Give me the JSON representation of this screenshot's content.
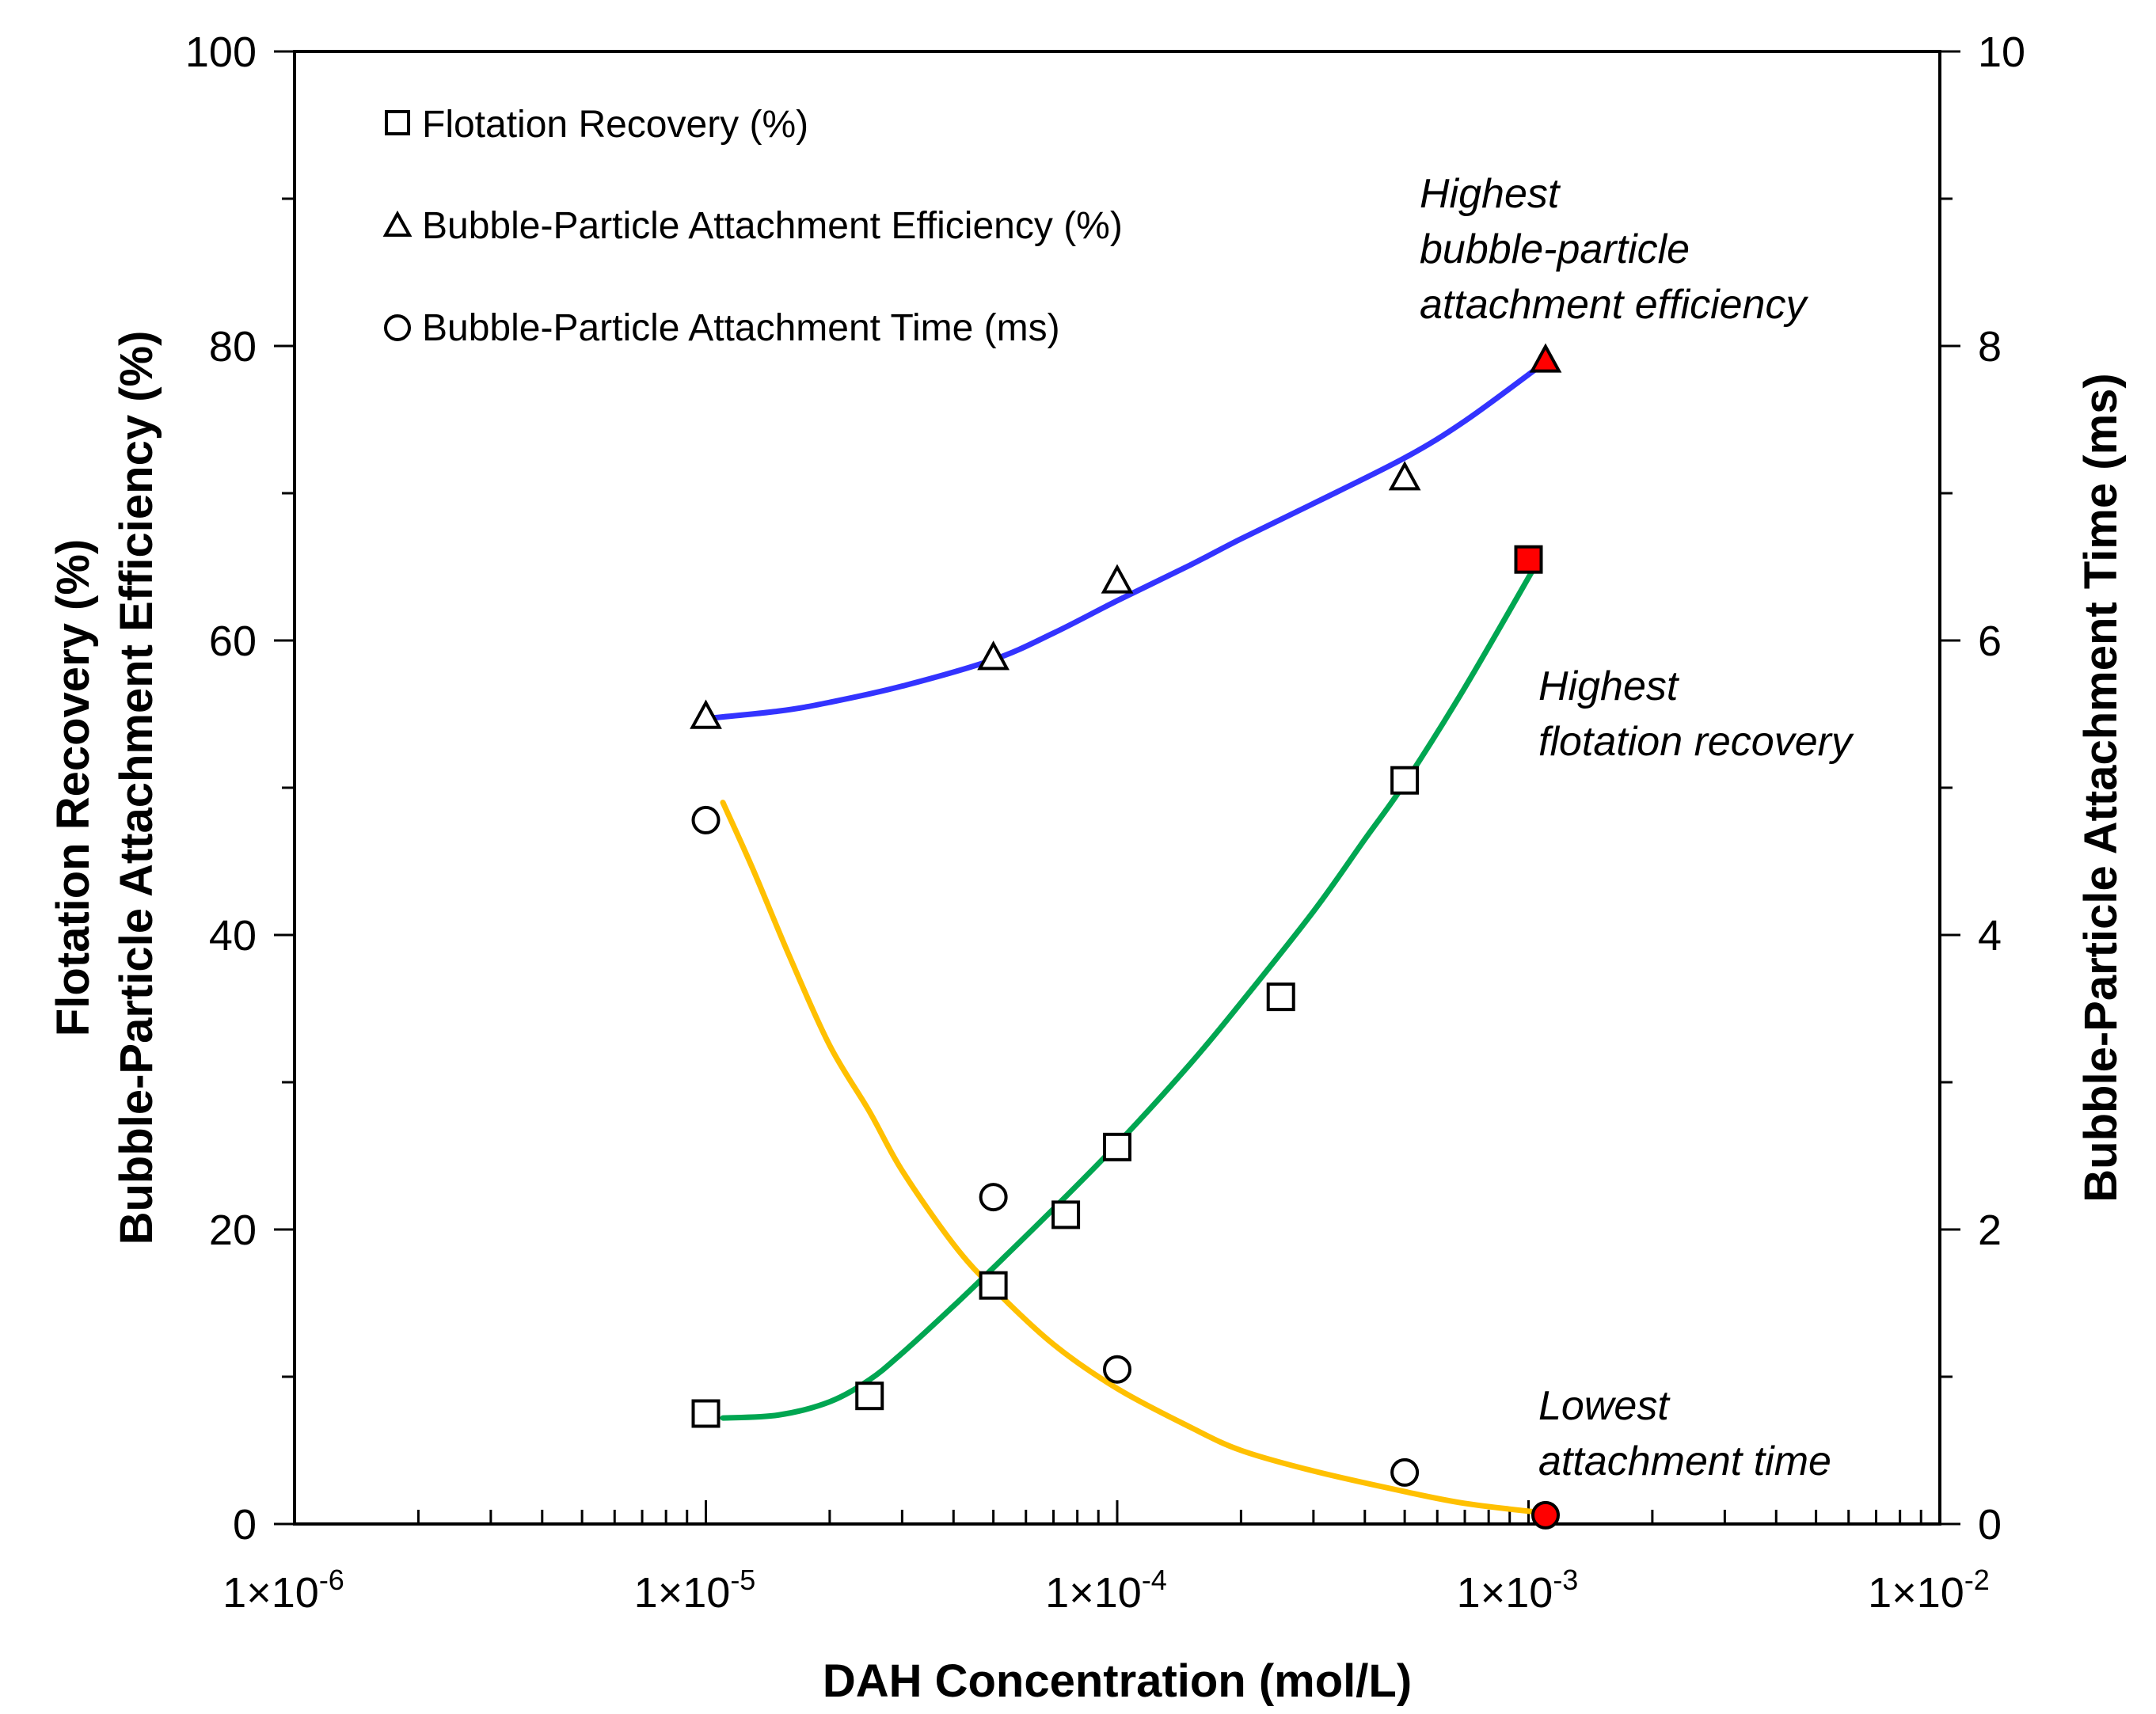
{
  "chart_data": {
    "type": "scatter",
    "xlabel": "DAH Concentration (mol/L)",
    "ylabel_line1": "Flotation Recovery (%)",
    "ylabel_line2": "Bubble-Particle Attachment Efficiency (%)",
    "y2label": "Bubble-Particle Attachment Time (ms)",
    "x_scale": "log",
    "xlim": [
      1e-06,
      0.01
    ],
    "ylim": [
      0,
      100
    ],
    "y2lim": [
      0,
      10
    ],
    "x_ticks": [
      1e-06,
      1e-05,
      0.0001,
      0.001,
      0.01
    ],
    "x_tick_labels": [
      {
        "base": "1×10",
        "exp": "-6"
      },
      {
        "base": "1×10",
        "exp": "-5"
      },
      {
        "base": "1×10",
        "exp": "-4"
      },
      {
        "base": "1×10",
        "exp": "-3"
      },
      {
        "base": "1×10",
        "exp": "-2"
      }
    ],
    "y_tick_labels": [
      "0",
      "20",
      "40",
      "60",
      "80",
      "100"
    ],
    "y2_tick_labels": [
      "0",
      "2",
      "4",
      "6",
      "8",
      "10"
    ],
    "series": [
      {
        "name": "Flotation Recovery (%)",
        "marker": "square",
        "axis": "left",
        "x": [
          1e-05,
          2.5e-05,
          5e-05,
          7.5e-05,
          0.0001,
          0.00025,
          0.0005,
          0.001
        ],
        "y": [
          7.5,
          8.7,
          16.2,
          21.0,
          25.6,
          35.8,
          50.5,
          65.5
        ],
        "highlight_index": 7,
        "fit_color": "#00a651",
        "fit_x": [
          1.1e-05,
          1.5e-05,
          2e-05,
          2.5e-05,
          3e-05,
          4e-05,
          5e-05,
          7e-05,
          0.0001,
          0.00015,
          0.0002,
          0.0003,
          0.0004,
          0.0005,
          0.0007,
          0.00105
        ],
        "fit_y": [
          7.2,
          7.4,
          8.3,
          9.8,
          11.6,
          14.8,
          17.4,
          21.4,
          25.8,
          31.2,
          35.4,
          41.6,
          46.5,
          50.3,
          56.8,
          65.3
        ]
      },
      {
        "name": "Bubble-Particle Attachment Efficiency (%)",
        "marker": "triangle",
        "axis": "left",
        "x": [
          1e-05,
          5e-05,
          0.0001,
          0.0005,
          0.0011
        ],
        "y": [
          54.8,
          58.8,
          64.0,
          71.0,
          79.0
        ],
        "highlight_index": 4,
        "fit_color": "#3333ff",
        "fit_x": [
          1e-05,
          1.5e-05,
          2e-05,
          3e-05,
          5e-05,
          7e-05,
          0.0001,
          0.00015,
          0.0002,
          0.0003,
          0.0005,
          0.0007,
          0.00105
        ],
        "fit_y": [
          54.7,
          55.2,
          55.8,
          56.9,
          58.7,
          60.5,
          62.7,
          65.1,
          66.9,
          69.3,
          72.4,
          74.9,
          78.5
        ]
      },
      {
        "name": "Bubble-Particle Attachment Time (ms)",
        "marker": "circle",
        "axis": "right",
        "x": [
          1e-05,
          5e-05,
          0.0001,
          0.0005,
          0.0011
        ],
        "y": [
          4.78,
          2.22,
          1.05,
          0.35,
          0.06
        ],
        "highlight_index": 4,
        "fit_color": "#ffc000",
        "fit_x": [
          1.1e-05,
          1.3e-05,
          1.6e-05,
          2e-05,
          2.5e-05,
          3e-05,
          4e-05,
          5e-05,
          7e-05,
          0.0001,
          0.00015,
          0.0002,
          0.0003,
          0.0005,
          0.0007,
          0.00105
        ],
        "fit_y": [
          4.9,
          4.45,
          3.85,
          3.25,
          2.8,
          2.4,
          1.9,
          1.6,
          1.22,
          0.92,
          0.66,
          0.5,
          0.36,
          0.22,
          0.14,
          0.08
        ]
      }
    ],
    "highlight_color": "#ff0000",
    "legend": {
      "position": "top-left",
      "entries": [
        "Flotation Recovery (%)",
        "Bubble-Particle Attachment Efficiency (%)",
        "Bubble-Particle Attachment Time (ms)"
      ]
    },
    "annotations": [
      {
        "lines": [
          "Highest",
          "bubble-particle",
          "attachment efficiency"
        ],
        "target_series": 1
      },
      {
        "lines": [
          "Highest",
          "flotation recovery"
        ],
        "target_series": 0
      },
      {
        "lines": [
          "Lowest",
          "attachment time"
        ],
        "target_series": 2
      }
    ]
  }
}
